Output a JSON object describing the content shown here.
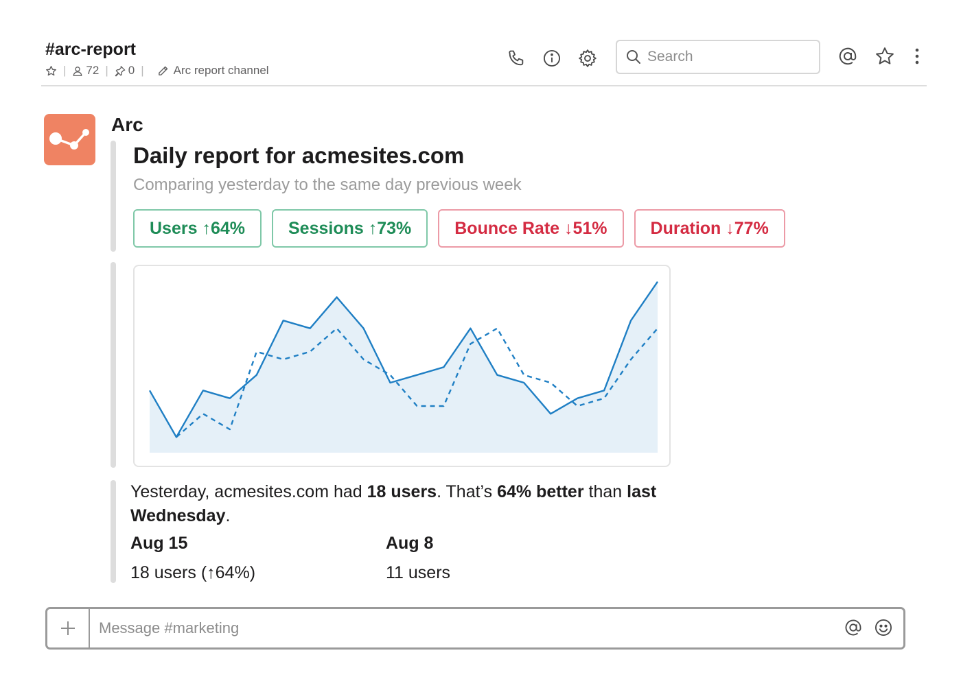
{
  "header": {
    "channel_name": "#arc-report",
    "member_count": "72",
    "pinned_count": "0",
    "topic": "Arc report channel",
    "search_placeholder": "Search"
  },
  "message": {
    "sender": "Arc",
    "report_title": "Daily report for acmesites.com",
    "report_subtitle": "Comparing yesterday to the same day previous week",
    "pills": [
      {
        "label": "Users ↑64%",
        "direction": "up"
      },
      {
        "label": "Sessions ↑73%",
        "direction": "up"
      },
      {
        "label": "Bounce Rate ↓51%",
        "direction": "down"
      },
      {
        "label": "Duration ↓77%",
        "direction": "down"
      }
    ],
    "summary": {
      "part1": "Yesterday, acmesites.com had ",
      "users": "18 users",
      "part2": ". That’s ",
      "better": "64% better",
      "part3": " than ",
      "last": "last Wednesday",
      "part4": "."
    },
    "stats": [
      {
        "date": "Aug 15",
        "value": "18 users (↑64%)"
      },
      {
        "date": "Aug 8",
        "value": "11 users"
      }
    ]
  },
  "chart_data": {
    "type": "area",
    "x": [
      1,
      2,
      3,
      4,
      5,
      6,
      7,
      8,
      9,
      10,
      11,
      12,
      13,
      14,
      15,
      16,
      17,
      18,
      19,
      20
    ],
    "series": [
      {
        "values": [
          8,
          2,
          8,
          7,
          10,
          17,
          16,
          20,
          16,
          9,
          10,
          11,
          16,
          10,
          9,
          5,
          7,
          8,
          17,
          22
        ],
        "style": "solid"
      },
      {
        "values": [
          null,
          2,
          5,
          3,
          13,
          12,
          13,
          16,
          12,
          10,
          6,
          6,
          14,
          16,
          10,
          9,
          6,
          7,
          12,
          16
        ],
        "style": "dashed"
      }
    ],
    "colors": {
      "line": "#1f7fc4",
      "fill": "#e5f0f8"
    },
    "ylim": [
      0,
      24
    ]
  },
  "composer": {
    "placeholder": "Message #marketing"
  },
  "colors": {
    "accent_green": "#1e8c57",
    "accent_red": "#d42b42",
    "avatar": "#ef8363"
  }
}
